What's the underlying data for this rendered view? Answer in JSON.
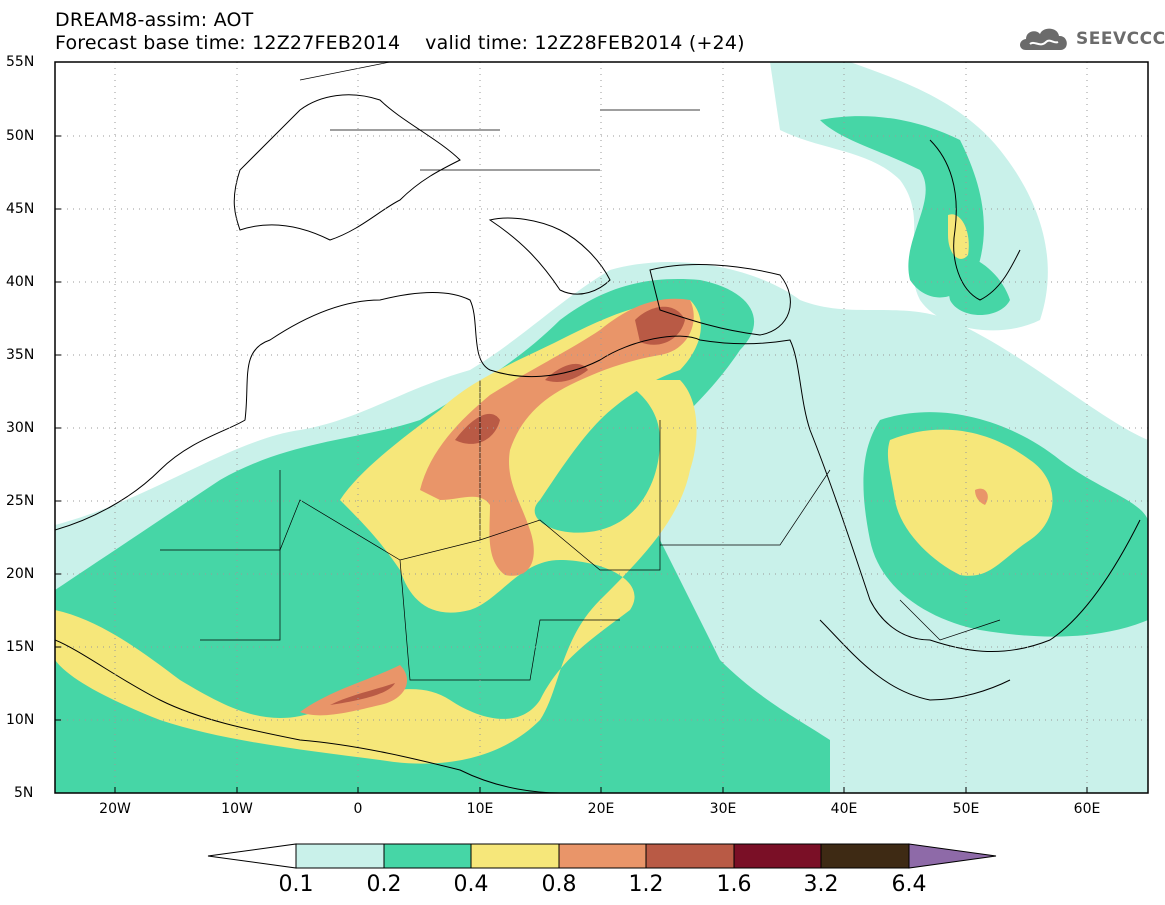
{
  "header": {
    "title_line1": "DREAM8-assim: AOT",
    "title_line2": "Forecast base time: 12Z27FEB2014    valid time: 12Z28FEB2014 (+24)"
  },
  "logo": {
    "text": "SEEVCCC",
    "icon": "cloud-icon"
  },
  "axes": {
    "lat_labels": [
      "55N",
      "50N",
      "45N",
      "40N",
      "35N",
      "30N",
      "25N",
      "20N",
      "15N",
      "10N",
      "5N"
    ],
    "lon_labels": [
      "20W",
      "10W",
      "0",
      "10E",
      "20E",
      "30E",
      "40E",
      "50E",
      "60E"
    ]
  },
  "legend": {
    "labels": [
      "0.1",
      "0.2",
      "0.4",
      "0.8",
      "1.2",
      "1.6",
      "3.2",
      "6.4"
    ],
    "colors": [
      "#c9f1ea",
      "#46d6a6",
      "#f6e77a",
      "#e99569",
      "#b95a45",
      "#7a0f26",
      "#3e2a14",
      "#8e6aa8"
    ]
  },
  "colors": {
    "background": "#ffffff",
    "coast": "#000000"
  }
}
